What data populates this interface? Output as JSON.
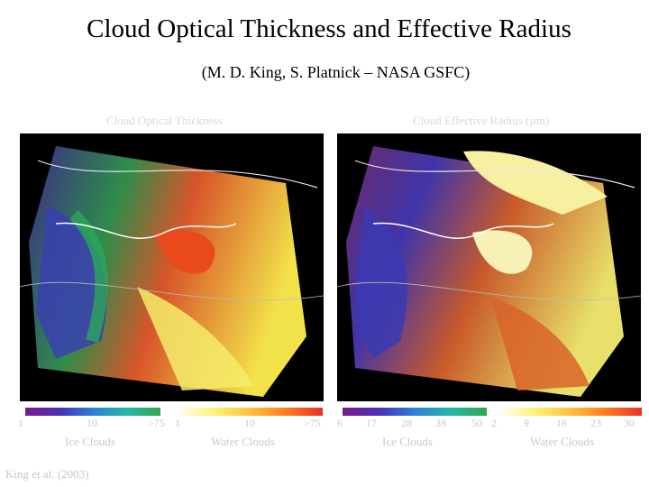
{
  "title": "Cloud Optical Thickness and Effective Radius",
  "subtitle": "(M. D. King, S. Platnick – NASA GSFC)",
  "panels": [
    {
      "title": "Cloud Optical Thickness"
    },
    {
      "title": "Cloud Effective Radius (µm)"
    }
  ],
  "scales": {
    "tau_ice": {
      "ticks": [
        "1",
        "10",
        ">75"
      ],
      "caption": "Ice Clouds"
    },
    "tau_water": {
      "ticks": [
        "1",
        "10",
        ">75"
      ],
      "caption": "Water Clouds"
    },
    "re_ice": {
      "ticks": [
        "6",
        "17",
        "28",
        "39",
        "50"
      ],
      "caption": "Ice Clouds"
    },
    "re_water": {
      "ticks": [
        "2",
        "9",
        "16",
        "23",
        "30"
      ],
      "caption": "Water Clouds"
    }
  },
  "citation": "King et al. (2003)",
  "colors": {
    "ice_scale": [
      "#7a1c8c",
      "#4a2fb8",
      "#2d7fd6",
      "#25b8a8",
      "#2fa84a"
    ],
    "water_scale": [
      "#ffffff",
      "#fff27a",
      "#ffc23a",
      "#ff7d1c",
      "#e8302a"
    ]
  }
}
